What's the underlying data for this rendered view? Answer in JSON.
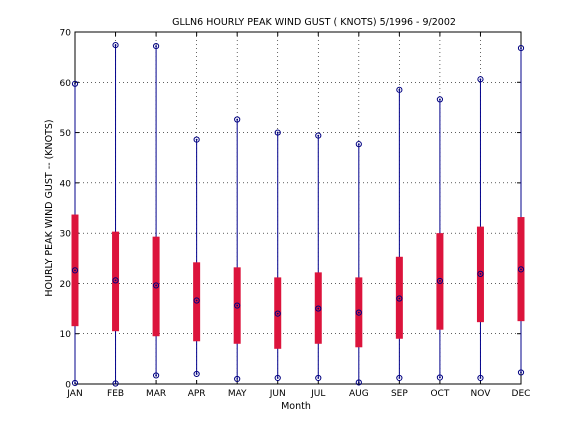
{
  "chart_data": {
    "type": "box",
    "title": "GLLN6  HOURLY PEAK WIND GUST ( KNOTS) 5/1996 - 9/2002",
    "xlabel": "Month",
    "ylabel": "HOURLY PEAK WIND GUST -- (KNOTS)",
    "ylim": [
      0,
      70
    ],
    "yticks": [
      "0",
      "10",
      "20",
      "30",
      "40",
      "50",
      "60",
      "70"
    ],
    "grid": true,
    "categories": [
      "JAN",
      "FEB",
      "MAR",
      "APR",
      "MAY",
      "JUN",
      "JUL",
      "AUG",
      "SEP",
      "OCT",
      "NOV",
      "DEC"
    ],
    "min": [
      0.2,
      0.1,
      1.7,
      2.0,
      1.0,
      1.2,
      1.2,
      0.3,
      1.2,
      1.3,
      1.2,
      2.3
    ],
    "q1": [
      11.5,
      10.5,
      9.5,
      8.5,
      8.0,
      7.0,
      8.0,
      7.3,
      9.0,
      10.8,
      12.3,
      12.5
    ],
    "median": [
      22.6,
      20.6,
      19.6,
      16.6,
      15.6,
      14.0,
      15.0,
      14.2,
      17.0,
      20.5,
      21.9,
      22.8
    ],
    "q3": [
      33.7,
      30.3,
      29.3,
      24.2,
      23.2,
      21.2,
      22.2,
      21.2,
      25.3,
      30.0,
      31.3,
      33.2
    ],
    "max": [
      59.7,
      67.4,
      67.2,
      48.6,
      52.6,
      50.0,
      49.4,
      47.7,
      58.5,
      56.6,
      60.6,
      66.8
    ],
    "colors": {
      "whisker": "#00008b",
      "box": "#dc143c",
      "marker": "#000080",
      "grid": "#000000"
    }
  }
}
